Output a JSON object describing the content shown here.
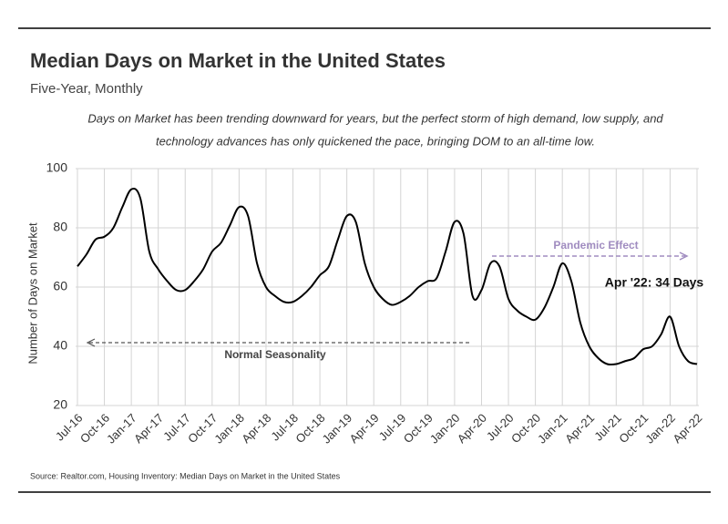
{
  "chart_data": {
    "type": "line",
    "title": "Median Days on Market in the United States",
    "subtitle": "Five-Year, Monthly",
    "description": [
      "Days on Market has been trending downward for years, but the perfect storm of high demand, low supply, and",
      "technology advances has only quickened the pace, bringing DOM to an all-time low."
    ],
    "y_label": "Number of Days on Market",
    "source": "Source:  Realtor.com, Housing Inventory: Median Days on Market in the United States",
    "annotations": {
      "pandemic": "Pandemic Effect",
      "seasonality": "Normal Seasonality",
      "latest": "Apr '22: 34 Days"
    },
    "categories": [
      "Jul-16",
      null,
      null,
      "Oct-16",
      null,
      null,
      "Jan-17",
      null,
      null,
      "Apr-17",
      null,
      null,
      "Jul-17",
      null,
      null,
      "Oct-17",
      null,
      null,
      "Jan-18",
      null,
      null,
      "Apr-18",
      null,
      null,
      "Jul-18",
      null,
      null,
      "Oct-18",
      null,
      null,
      "Jan-19",
      null,
      null,
      "Apr-19",
      null,
      null,
      "Jul-19",
      null,
      null,
      "Oct-19",
      null,
      null,
      "Jan-20",
      null,
      null,
      "Apr-20",
      null,
      null,
      "Jul-20",
      null,
      null,
      "Oct-20",
      null,
      null,
      "Jan-21",
      null,
      null,
      "Apr-21",
      null,
      null,
      "Jul-21",
      null,
      null,
      "Oct-21",
      null,
      null,
      "Jan-22",
      null,
      null,
      "Apr-22"
    ],
    "series": [
      {
        "name": "Median Days on Market",
        "color": "#000000",
        "values": [
          67,
          71,
          76,
          77,
          80,
          87,
          93,
          90,
          72,
          66,
          62,
          59,
          59,
          62,
          66,
          72,
          75,
          81,
          87,
          84,
          68,
          60,
          57,
          55,
          55,
          57,
          60,
          64,
          67,
          76,
          84,
          82,
          68,
          60,
          56,
          54,
          55,
          57,
          60,
          62,
          63,
          72,
          82,
          78,
          57,
          59,
          68,
          67,
          56,
          52,
          50,
          49,
          53,
          60,
          68,
          62,
          48,
          40,
          36,
          34,
          34,
          35,
          36,
          39,
          40,
          44,
          50,
          40,
          35,
          34
        ]
      }
    ],
    "ylim": [
      20,
      100
    ],
    "yticks": [
      20,
      40,
      60,
      80,
      100
    ],
    "grid": true
  }
}
